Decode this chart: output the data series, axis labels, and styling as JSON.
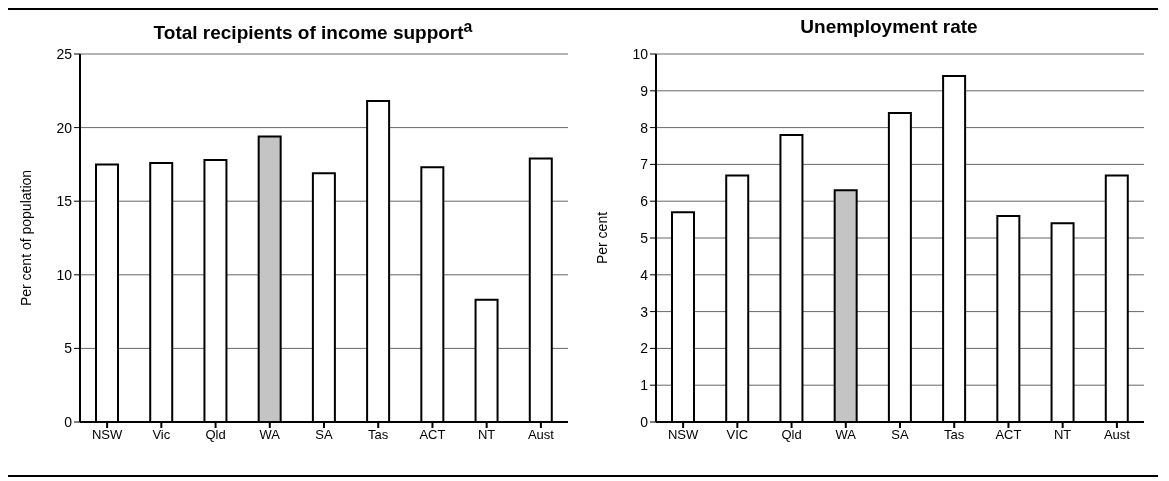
{
  "chart_data": [
    {
      "type": "bar",
      "title": "Total recipients of income support$^{a}$",
      "ylabel": "Per cent of population",
      "categories": [
        "NSW",
        "Vic",
        "Qld",
        "WA",
        "SA",
        "Tas",
        "ACT",
        "NT",
        "Aust"
      ],
      "values": [
        17.5,
        17.6,
        17.8,
        19.4,
        16.9,
        21.8,
        17.3,
        8.3,
        17.9
      ],
      "colors": [
        "#ffffff",
        "#ffffff",
        "#ffffff",
        "#c4c4c4",
        "#ffffff",
        "#ffffff",
        "#ffffff",
        "#ffffff",
        "#ffffff"
      ],
      "ylim": [
        0,
        25
      ],
      "yticks": [
        0,
        5,
        10,
        15,
        20,
        25
      ],
      "grid": "y",
      "legend": false
    },
    {
      "type": "bar",
      "title": "Unemployment rate",
      "ylabel": "Per cent",
      "categories": [
        "NSW",
        "VIC",
        "Qld",
        "WA",
        "SA",
        "Tas",
        "ACT",
        "NT",
        "Aust"
      ],
      "values": [
        5.7,
        6.7,
        7.8,
        6.3,
        8.4,
        9.4,
        5.6,
        5.4,
        6.7
      ],
      "colors": [
        "#ffffff",
        "#ffffff",
        "#ffffff",
        "#c4c4c4",
        "#ffffff",
        "#ffffff",
        "#ffffff",
        "#ffffff",
        "#ffffff"
      ],
      "ylim": [
        0,
        10
      ],
      "yticks": [
        0,
        1,
        2,
        3,
        4,
        5,
        6,
        7,
        8,
        9,
        10
      ],
      "grid": "y",
      "legend": false
    }
  ]
}
